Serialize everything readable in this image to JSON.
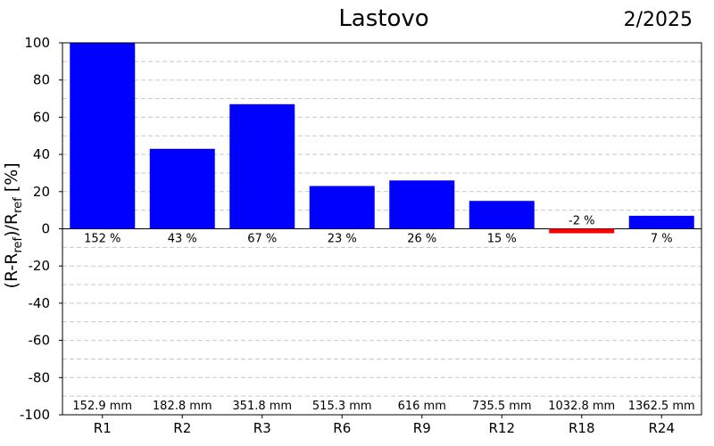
{
  "header": {
    "title": "Lastovo",
    "date": "2/2025"
  },
  "axis": {
    "ylabel_main": "(R-R",
    "ylabel_sub1": "ref",
    "ylabel_mid": ")/R",
    "ylabel_sub2": "ref",
    "ylabel_end": " [%]"
  },
  "colors": {
    "positive": "#0000ff",
    "negative": "#ff0000",
    "grid": "#c8c8c8"
  },
  "chart_data": {
    "type": "bar",
    "title": "Lastovo",
    "subtitle": "2/2025",
    "categories": [
      "R1",
      "R2",
      "R3",
      "R6",
      "R9",
      "R12",
      "R18",
      "R24"
    ],
    "values": [
      152,
      43,
      67,
      23,
      26,
      15,
      -2,
      7
    ],
    "value_labels": [
      "152 %",
      "43 %",
      "67 %",
      "23 %",
      "26 %",
      "15 %",
      "-2 %",
      "7 %"
    ],
    "precip_labels": [
      "152.9 mm",
      "182.8 mm",
      "351.8 mm",
      "515.3 mm",
      "616 mm",
      "735.5 mm",
      "1032.8 mm",
      "1362.5 mm"
    ],
    "ylabel": "(R-Rref)/Rref [%]",
    "ylim": [
      -100,
      100
    ],
    "yticks": [
      100,
      80,
      60,
      40,
      20,
      0,
      -20,
      -40,
      -60,
      -80,
      -100
    ],
    "grid": true
  }
}
